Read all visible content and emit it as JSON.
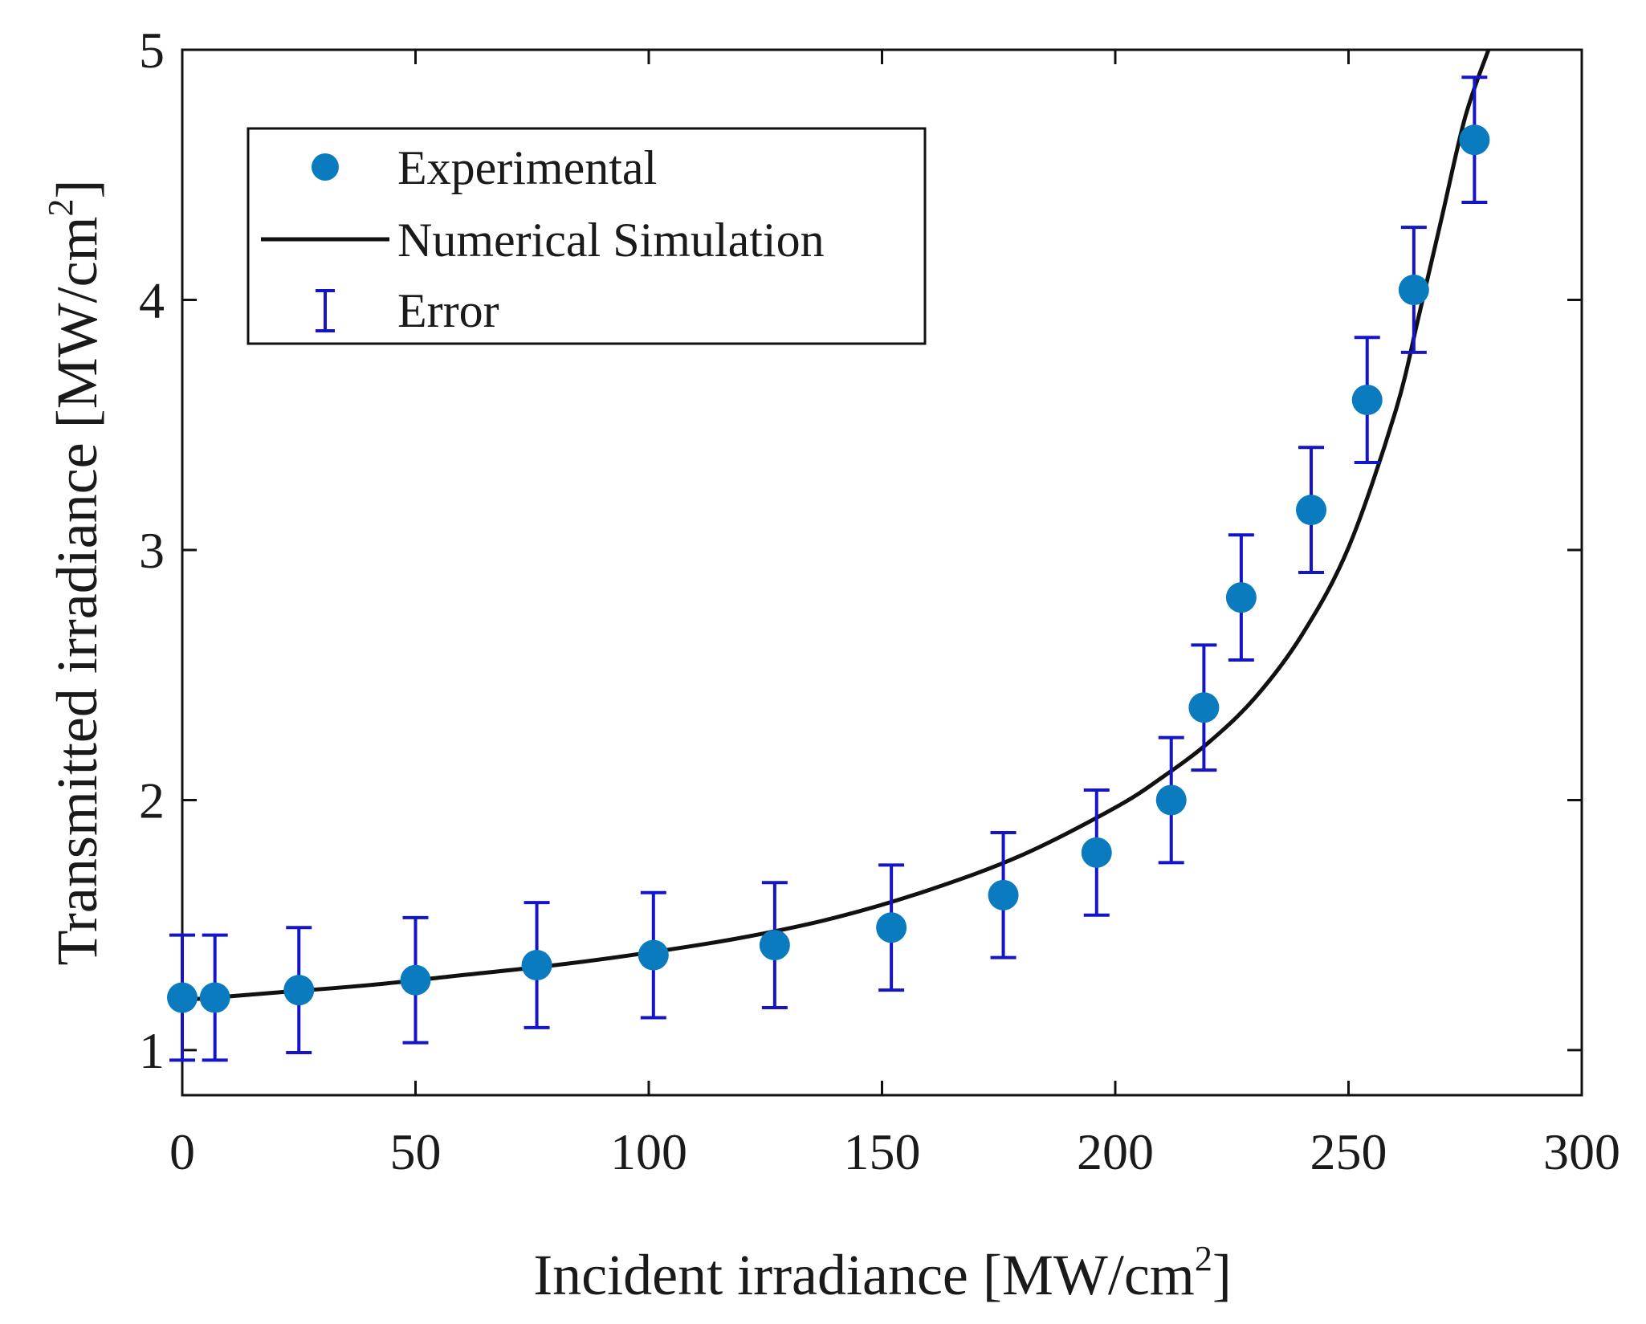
{
  "colors": {
    "marker": "#0a7bbf",
    "error_bar": "#1414c8",
    "line": "#111111",
    "axis": "#111111"
  },
  "chart_data": {
    "type": "scatter",
    "title": "",
    "xlabel": "Incident irradiance [MW/cm",
    "xlabel_sup": "2",
    "xlabel_end": "]",
    "ylabel": "Transmitted irradiance [MW/cm",
    "ylabel_sup": "2",
    "ylabel_end": "]",
    "xlim": [
      0,
      300
    ],
    "ylim": [
      0.82,
      5
    ],
    "xticks": [
      0,
      50,
      100,
      150,
      200,
      250,
      300
    ],
    "xtick_labels": [
      "0",
      "50",
      "100",
      "150",
      "200",
      "250",
      "300"
    ],
    "yticks": [
      1,
      2,
      3,
      4,
      5
    ],
    "ytick_labels": [
      "1",
      "2",
      "3",
      "4",
      "5"
    ],
    "grid": false,
    "legend_position": "top-left",
    "legend": [
      {
        "label": "Experimental",
        "kind": "marker",
        "icon": "filled-circle"
      },
      {
        "label": "Numerical Simulation",
        "kind": "line",
        "icon": "line"
      },
      {
        "label": "Error",
        "kind": "errorbar",
        "icon": "error-bar"
      }
    ],
    "series": [
      {
        "name": "Experimental",
        "kind": "scatter",
        "x": [
          0,
          7,
          25,
          50,
          76,
          101,
          127,
          152,
          176,
          196,
          212,
          219,
          227,
          242,
          254,
          264,
          277
        ],
        "y": [
          1.21,
          1.21,
          1.24,
          1.28,
          1.34,
          1.38,
          1.42,
          1.49,
          1.62,
          1.79,
          2.0,
          2.37,
          2.81,
          3.16,
          3.6,
          4.04,
          4.64
        ],
        "error": [
          0.25,
          0.25,
          0.25,
          0.25,
          0.25,
          0.25,
          0.25,
          0.25,
          0.25,
          0.25,
          0.25,
          0.25,
          0.25,
          0.25,
          0.25,
          0.25,
          0.25
        ]
      },
      {
        "name": "Numerical Simulation",
        "kind": "line",
        "x": [
          0,
          20,
          40,
          60,
          80,
          100,
          120,
          140,
          160,
          180,
          200,
          210,
          220,
          230,
          240,
          250,
          260,
          265,
          270,
          275,
          280
        ],
        "y": [
          1.2,
          1.23,
          1.26,
          1.3,
          1.34,
          1.39,
          1.45,
          1.53,
          1.64,
          1.78,
          1.97,
          2.09,
          2.23,
          2.41,
          2.66,
          3.01,
          3.55,
          3.93,
          4.33,
          4.73,
          5.0
        ]
      }
    ]
  }
}
